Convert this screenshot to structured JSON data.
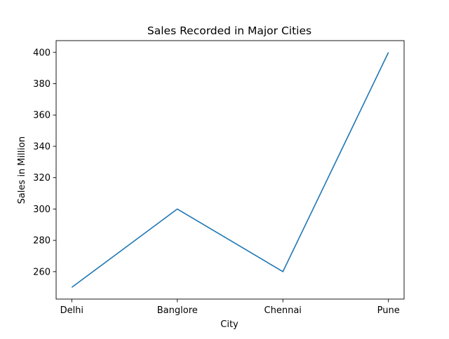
{
  "chart_data": {
    "type": "line",
    "title": "Sales Recorded in Major Cities",
    "xlabel": "City",
    "ylabel": "Sales in Million",
    "categories": [
      "Delhi",
      "Banglore",
      "Chennai",
      "Pune"
    ],
    "series": [
      {
        "values": [
          250,
          300,
          260,
          400
        ]
      }
    ],
    "ylim": [
      242.5,
      407.5
    ],
    "yticks": [
      260,
      280,
      300,
      320,
      340,
      360,
      380,
      400
    ],
    "grid": false,
    "line_color": "#1f77b4"
  }
}
